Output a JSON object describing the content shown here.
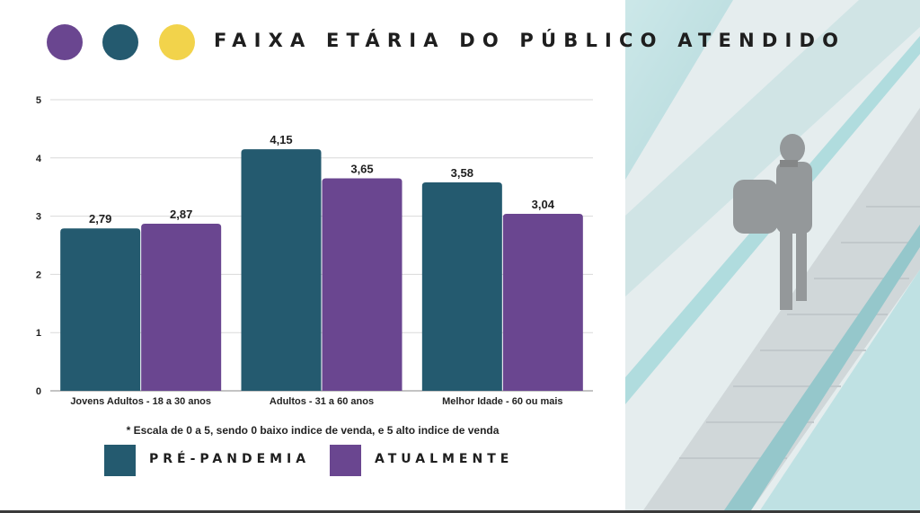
{
  "header": {
    "title": "FAIXA ETÁRIA DO PÚBLICO ATENDIDO",
    "dot_colors": [
      "#6a4690",
      "#245a6f",
      "#f2d34b"
    ]
  },
  "chart_data": {
    "type": "bar",
    "categories": [
      "Jovens Adultos - 18 a 30 anos",
      "Adultos - 31 a 60 anos",
      "Melhor Idade - 60 ou mais"
    ],
    "series": [
      {
        "name": "PRÉ-PANDEMIA",
        "values": [
          2.79,
          4.15,
          3.58
        ],
        "labels": [
          "2,79",
          "4,15",
          "3,58"
        ],
        "color": "#245a6f"
      },
      {
        "name": "ATUALMENTE",
        "values": [
          2.87,
          3.65,
          3.04
        ],
        "labels": [
          "2,87",
          "3,65",
          "3,04"
        ],
        "color": "#6a4690"
      }
    ],
    "ylim": [
      0,
      5
    ],
    "yticks": [
      "0",
      "1",
      "2",
      "3",
      "4",
      "5"
    ],
    "grid": true,
    "legend": "bottom"
  },
  "footnote": "* Escala de 0 a 5, sendo 0 baixo indice de venda, e 5 alto indice de venda",
  "legend": {
    "items": [
      {
        "label": "PRÉ-PANDEMIA",
        "color": "#245a6f"
      },
      {
        "label": "ATUALMENTE",
        "color": "#6a4690"
      }
    ]
  },
  "photo": {
    "accent_color": "#5fb3b8"
  }
}
